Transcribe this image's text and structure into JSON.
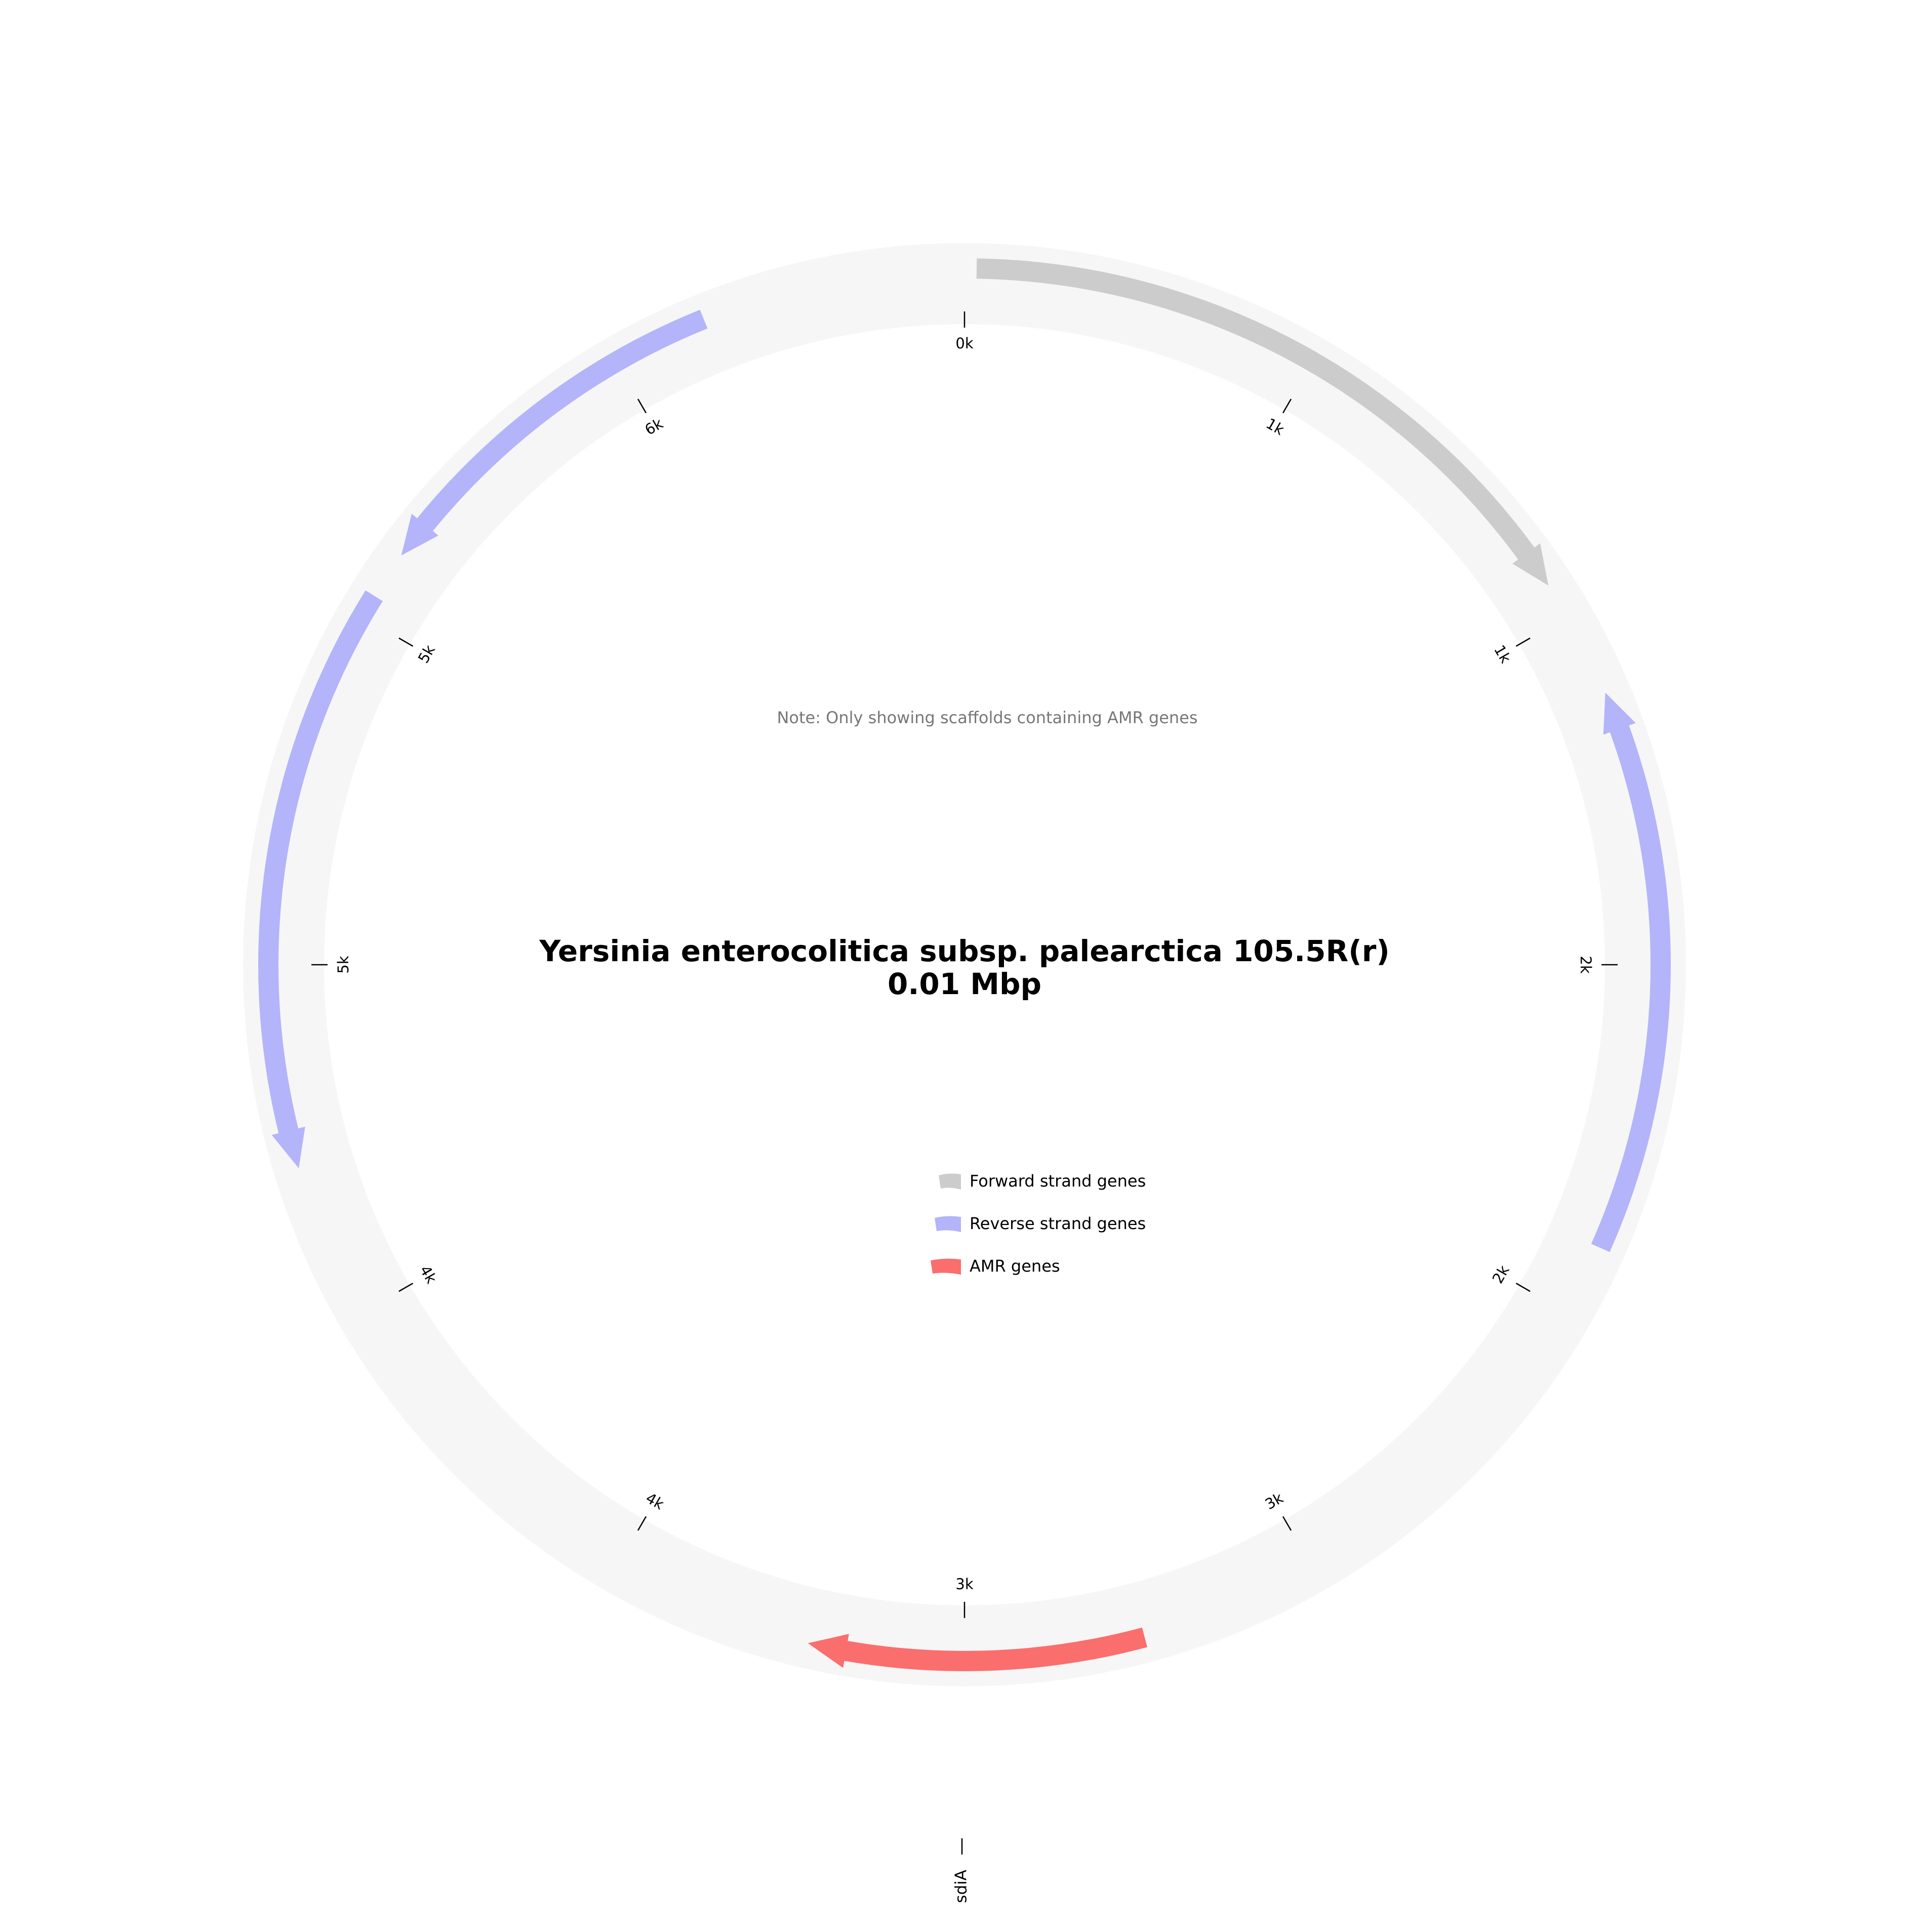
{
  "title": {
    "line1": "Yersinia enterocolitica subsp. palearctica 105.5R(r)",
    "line2": "0.01 Mbp"
  },
  "note": "Note: Only showing scaffolds containing AMR genes",
  "colors": {
    "backbone": "#f6f6f6",
    "forward": "#cccccc",
    "reverse": "#b4b4fa",
    "amr": "#fa6e6e",
    "tick": "#000000"
  },
  "ticks": [
    {
      "angle": 0,
      "label": "0k"
    },
    {
      "angle": 30,
      "label": "1k"
    },
    {
      "angle": 60,
      "label": "1k"
    },
    {
      "angle": 90,
      "label": "2k"
    },
    {
      "angle": 120,
      "label": "2k"
    },
    {
      "angle": 150,
      "label": "3k"
    },
    {
      "angle": 180,
      "label": "3k"
    },
    {
      "angle": 210,
      "label": "4k"
    },
    {
      "angle": 240,
      "label": "4k"
    },
    {
      "angle": 270,
      "label": "5k"
    },
    {
      "angle": 300,
      "label": "5k"
    },
    {
      "angle": 330,
      "label": "6k"
    }
  ],
  "genes": [
    {
      "type": "forward",
      "start": 1,
      "end": 57,
      "direction": "cw"
    },
    {
      "type": "reverse",
      "start": 67,
      "end": 114,
      "direction": "ccw"
    },
    {
      "type": "amr",
      "start": 165,
      "end": 193,
      "direction": "cw"
    },
    {
      "type": "reverse",
      "start": 253,
      "end": 302,
      "direction": "ccw"
    },
    {
      "type": "reverse",
      "start": 306,
      "end": 338,
      "direction": "ccw"
    }
  ],
  "gene_labels": [
    {
      "name": "sdiA",
      "angle": 180
    }
  ],
  "legend": [
    {
      "type": "forward",
      "label": "Forward strand genes"
    },
    {
      "type": "reverse",
      "label": "Reverse strand genes"
    },
    {
      "type": "amr",
      "label": "AMR genes"
    }
  ]
}
